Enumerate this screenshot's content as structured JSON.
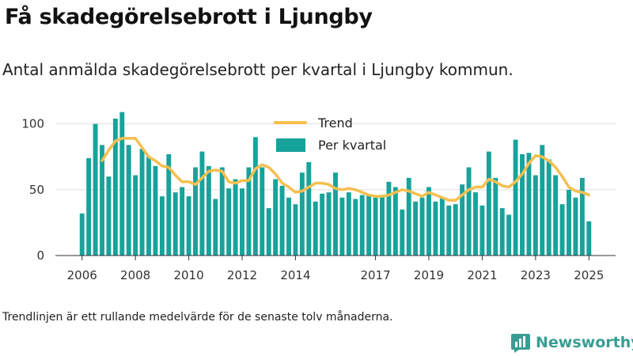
{
  "title": "Få skadegörelsebrott i Ljungby",
  "subtitle": "Antal anmälda skadegörelsebrott per kvartal i Ljungby kommun.",
  "footnote": "Trendlinjen är ett rullande medelvärde för de senaste tolv månaderna.",
  "brand": {
    "name": "Newsworthy",
    "logo_icon": "newsworthy-logo-icon"
  },
  "colors": {
    "bars": "#16a39b",
    "trend": "#f6bf4f",
    "grid": "#dddddd",
    "axis": "#333333"
  },
  "chart_data": {
    "type": "bar",
    "title": "",
    "xlabel": "",
    "ylabel": "",
    "ylim": [
      0,
      110
    ],
    "yticks": [
      "0",
      "50",
      "100"
    ],
    "xticks": [
      "2006",
      "2008",
      "2010",
      "2012",
      "2014",
      "2017",
      "2019",
      "2021",
      "2023",
      "2025"
    ],
    "xtick_positions": [
      2006,
      2008,
      2010,
      2012,
      2014,
      2017,
      2019,
      2021,
      2023,
      2025
    ],
    "x_range": [
      2005.0,
      2026.0
    ],
    "grid": true,
    "legend_position": "top",
    "series": [
      {
        "name": "Per kvartal",
        "kind": "bar",
        "x": [
          2006.0,
          2006.25,
          2006.5,
          2006.75,
          2007.0,
          2007.25,
          2007.5,
          2007.75,
          2008.0,
          2008.25,
          2008.5,
          2008.75,
          2009.0,
          2009.25,
          2009.5,
          2009.75,
          2010.0,
          2010.25,
          2010.5,
          2010.75,
          2011.0,
          2011.25,
          2011.5,
          2011.75,
          2012.0,
          2012.25,
          2012.5,
          2012.75,
          2013.0,
          2013.25,
          2013.5,
          2013.75,
          2014.0,
          2014.25,
          2014.5,
          2014.75,
          2015.0,
          2015.25,
          2015.5,
          2015.75,
          2016.0,
          2016.25,
          2016.5,
          2016.75,
          2017.0,
          2017.25,
          2017.5,
          2017.75,
          2018.0,
          2018.25,
          2018.5,
          2018.75,
          2019.0,
          2019.25,
          2019.5,
          2019.75,
          2020.0,
          2020.25,
          2020.5,
          2020.75,
          2021.0,
          2021.25,
          2021.5,
          2021.75,
          2022.0,
          2022.25,
          2022.5,
          2022.75,
          2023.0,
          2023.25,
          2023.5,
          2023.75,
          2024.0,
          2024.25,
          2024.5,
          2024.75,
          2025.0
        ],
        "values": [
          32,
          74,
          100,
          84,
          60,
          104,
          109,
          84,
          61,
          81,
          75,
          68,
          45,
          77,
          48,
          52,
          45,
          67,
          79,
          68,
          43,
          67,
          51,
          58,
          51,
          67,
          90,
          67,
          36,
          58,
          53,
          44,
          39,
          63,
          71,
          41,
          47,
          48,
          63,
          44,
          48,
          43,
          46,
          46,
          44,
          45,
          56,
          52,
          35,
          59,
          41,
          44,
          52,
          41,
          44,
          38,
          39,
          54,
          67,
          48,
          38,
          79,
          59,
          36,
          31,
          88,
          77,
          78,
          61,
          84,
          73,
          61,
          39,
          50,
          44,
          59,
          26
        ]
      },
      {
        "name": "Trend",
        "kind": "line",
        "x": [
          2006.75,
          2007.0,
          2007.25,
          2007.5,
          2007.75,
          2008.0,
          2008.25,
          2008.5,
          2008.75,
          2009.0,
          2009.25,
          2009.5,
          2009.75,
          2010.0,
          2010.25,
          2010.5,
          2010.75,
          2011.0,
          2011.25,
          2011.5,
          2011.75,
          2012.0,
          2012.25,
          2012.5,
          2012.75,
          2013.0,
          2013.25,
          2013.5,
          2013.75,
          2014.0,
          2014.25,
          2014.5,
          2014.75,
          2015.0,
          2015.25,
          2015.5,
          2015.75,
          2016.0,
          2016.25,
          2016.5,
          2016.75,
          2017.0,
          2017.25,
          2017.5,
          2017.75,
          2018.0,
          2018.25,
          2018.5,
          2018.75,
          2019.0,
          2019.25,
          2019.5,
          2019.75,
          2020.0,
          2020.25,
          2020.5,
          2020.75,
          2021.0,
          2021.25,
          2021.5,
          2021.75,
          2022.0,
          2022.25,
          2022.5,
          2022.75,
          2023.0,
          2023.25,
          2023.5,
          2023.75,
          2024.0,
          2024.25,
          2024.5,
          2024.75,
          2025.0
        ],
        "values": [
          72,
          80,
          87,
          89,
          89,
          89,
          82,
          75,
          72,
          68,
          67,
          61,
          56,
          56,
          54,
          59,
          64,
          65,
          64,
          56,
          55,
          57,
          57,
          66,
          69,
          67,
          62,
          55,
          52,
          48,
          49,
          52,
          55,
          55,
          54,
          51,
          50,
          51,
          50,
          48,
          46,
          45,
          45,
          46,
          48,
          50,
          49,
          47,
          45,
          48,
          46,
          44,
          42,
          42,
          46,
          50,
          52,
          52,
          58,
          56,
          53,
          52,
          56,
          62,
          70,
          76,
          75,
          72,
          67,
          60,
          52,
          49,
          48,
          46
        ]
      }
    ]
  }
}
